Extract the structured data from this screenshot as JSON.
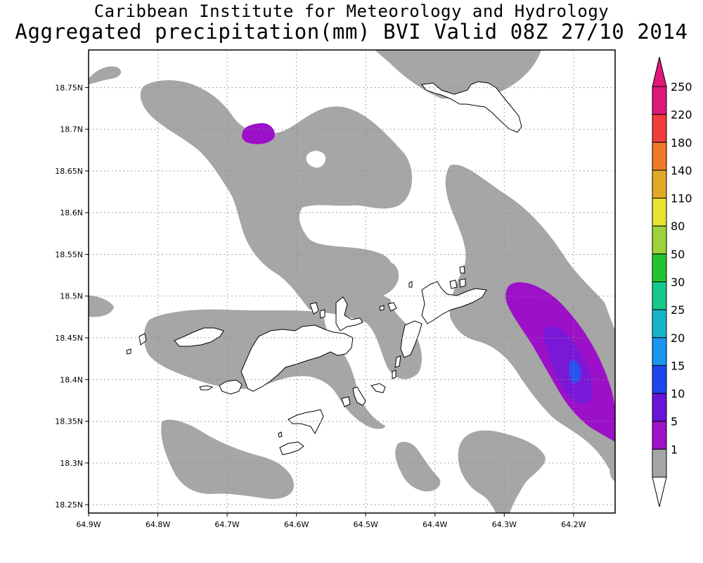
{
  "header": {
    "title": "Caribbean Institute for Meteorology and Hydrology",
    "subtitle": "Aggregated precipitation(mm) BVI Valid 08Z 27/10 2014"
  },
  "map": {
    "lon_range": [
      -64.9,
      -64.14
    ],
    "lat_range": [
      18.24,
      18.795
    ],
    "x_ticks": [
      {
        "value": -64.9,
        "label": "64.9W"
      },
      {
        "value": -64.8,
        "label": "64.8W"
      },
      {
        "value": -64.7,
        "label": "64.7W"
      },
      {
        "value": -64.6,
        "label": "64.6W"
      },
      {
        "value": -64.5,
        "label": "64.5W"
      },
      {
        "value": -64.4,
        "label": "64.4W"
      },
      {
        "value": -64.3,
        "label": "64.3W"
      },
      {
        "value": -64.2,
        "label": "64.2W"
      }
    ],
    "y_ticks": [
      {
        "value": 18.25,
        "label": "18.25N"
      },
      {
        "value": 18.3,
        "label": "18.3N"
      },
      {
        "value": 18.35,
        "label": "18.35N"
      },
      {
        "value": 18.4,
        "label": "18.4N"
      },
      {
        "value": 18.45,
        "label": "18.45N"
      },
      {
        "value": 18.5,
        "label": "18.5N"
      },
      {
        "value": 18.55,
        "label": "18.55N"
      },
      {
        "value": 18.6,
        "label": "18.6N"
      },
      {
        "value": 18.65,
        "label": "18.65N"
      },
      {
        "value": 18.7,
        "label": "18.7N"
      },
      {
        "value": 18.75,
        "label": "18.75N"
      }
    ],
    "grid": "dotted",
    "colors": {
      "rain_1_5": "#a6a6a6",
      "rain_5_10": "#9c10c8",
      "rain_10_15": "#7a18d8",
      "rain_15_20": "#2a50f0",
      "land_fill": "#ffffff",
      "land_outline": "#000000"
    }
  },
  "legend": {
    "units": "mm",
    "levels": [
      {
        "label": "250",
        "color": "#e0187a"
      },
      {
        "label": "220",
        "color": "#f03c3c"
      },
      {
        "label": "180",
        "color": "#f07a28"
      },
      {
        "label": "140",
        "color": "#e0aa28"
      },
      {
        "label": "110",
        "color": "#e8e230"
      },
      {
        "label": "80",
        "color": "#9ed23a"
      },
      {
        "label": "50",
        "color": "#22c432"
      },
      {
        "label": "30",
        "color": "#16c88a"
      },
      {
        "label": "25",
        "color": "#18b4c8"
      },
      {
        "label": "20",
        "color": "#1896f0"
      },
      {
        "label": "15",
        "color": "#1e46f0"
      },
      {
        "label": "10",
        "color": "#6a14d8"
      },
      {
        "label": "5",
        "color": "#a010c8"
      },
      {
        "label": "1",
        "color": "#a6a6a6"
      }
    ],
    "top_arrow_color": "#e0187a",
    "bottom_arrow_color": "#ffffff"
  }
}
